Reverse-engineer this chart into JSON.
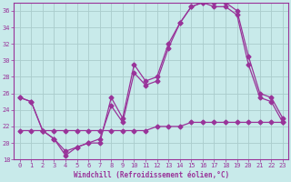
{
  "xlabel": "Windchill (Refroidissement éolien,°C)",
  "bg_color": "#c8eaea",
  "grid_color": "#aacccc",
  "line_color": "#993399",
  "xlim": [
    -0.5,
    23.5
  ],
  "ylim": [
    18,
    37
  ],
  "yticks": [
    18,
    20,
    22,
    24,
    26,
    28,
    30,
    32,
    34,
    36
  ],
  "xticks": [
    0,
    1,
    2,
    3,
    4,
    5,
    6,
    7,
    8,
    9,
    10,
    11,
    12,
    13,
    14,
    15,
    16,
    17,
    18,
    19,
    20,
    21,
    22,
    23
  ],
  "series1_x": [
    0,
    1,
    2,
    3,
    4,
    5,
    6,
    7,
    8,
    9,
    10,
    11,
    12,
    13,
    14,
    15,
    16,
    17,
    18,
    19,
    20,
    21,
    22,
    23
  ],
  "series1_y": [
    25.5,
    25.0,
    21.5,
    20.5,
    18.5,
    19.5,
    20.0,
    20.0,
    25.5,
    23.0,
    29.5,
    27.5,
    28.0,
    32.0,
    34.5,
    36.5,
    37.0,
    37.0,
    37.0,
    36.0,
    30.5,
    26.0,
    25.5,
    23.0
  ],
  "series2_x": [
    0,
    1,
    2,
    3,
    4,
    5,
    6,
    7,
    8,
    9,
    10,
    11,
    12,
    13,
    14,
    15,
    16,
    17,
    18,
    19,
    20,
    21,
    22,
    23
  ],
  "series2_y": [
    25.5,
    25.0,
    21.5,
    20.5,
    19.0,
    19.5,
    20.0,
    20.5,
    24.5,
    22.5,
    28.5,
    27.0,
    27.5,
    31.5,
    34.5,
    36.5,
    37.0,
    36.5,
    36.5,
    35.5,
    29.5,
    25.5,
    25.0,
    22.5
  ],
  "series3_x": [
    0,
    1,
    2,
    3,
    4,
    5,
    6,
    7,
    8,
    9,
    10,
    11,
    12,
    13,
    14,
    15,
    16,
    17,
    18,
    19,
    20,
    21,
    22,
    23
  ],
  "series3_y": [
    21.5,
    21.5,
    21.5,
    21.5,
    21.5,
    21.5,
    21.5,
    21.5,
    21.5,
    21.5,
    21.5,
    21.5,
    22.0,
    22.0,
    22.0,
    22.5,
    22.5,
    22.5,
    22.5,
    22.5,
    22.5,
    22.5,
    22.5,
    22.5
  ]
}
